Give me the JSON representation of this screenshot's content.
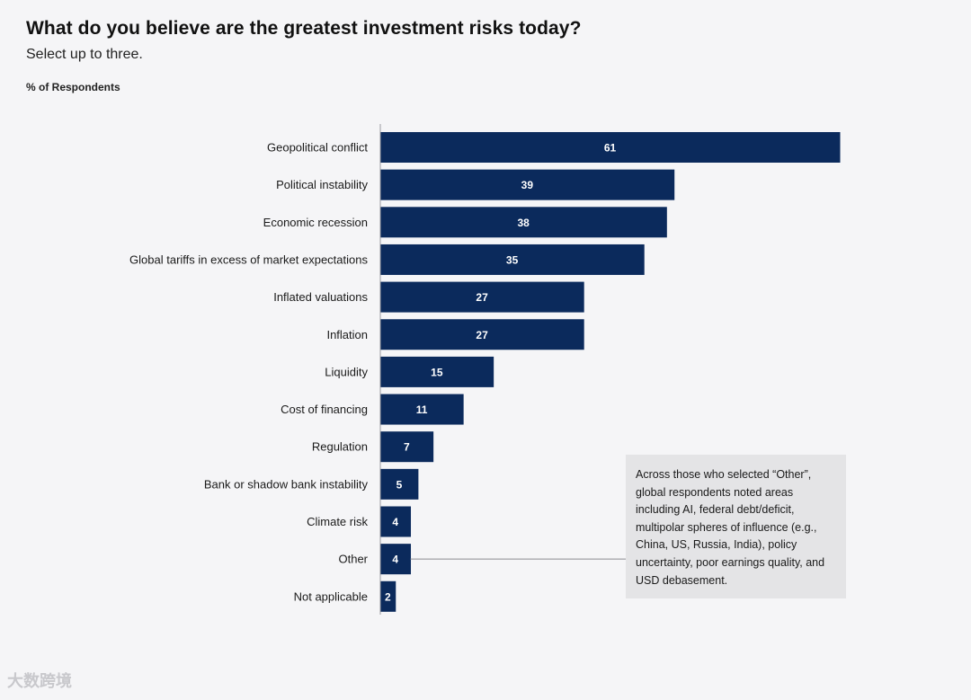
{
  "header": {
    "title": "What do you believe are the greatest investment risks today?",
    "subtitle": "Select up to three.",
    "unit_label": "% of Respondents"
  },
  "chart_data": {
    "type": "bar",
    "orientation": "horizontal",
    "categories": [
      "Geopolitical conflict",
      "Political instability",
      "Economic recession",
      "Global tariffs in excess of market expectations",
      "Inflated valuations",
      "Inflation",
      "Liquidity",
      "Cost of financing",
      "Regulation",
      "Bank or shadow bank instability",
      "Climate risk",
      "Other",
      "Not applicable"
    ],
    "values": [
      61,
      39,
      38,
      35,
      27,
      27,
      15,
      11,
      7,
      5,
      4,
      4,
      2
    ],
    "xlim": [
      0,
      61
    ],
    "bar_color": "#0b2a5c",
    "data_labels": true,
    "grid": false
  },
  "annotation": {
    "text": "Across those who selected “Other”, global respondents noted areas including AI, federal debt/deficit, multipolar spheres of influence (e.g., China, US, Russia, India), policy uncertainty, poor earnings quality, and USD debasement.",
    "target_category": "Other"
  },
  "watermark": {
    "text": "大数跨境"
  }
}
